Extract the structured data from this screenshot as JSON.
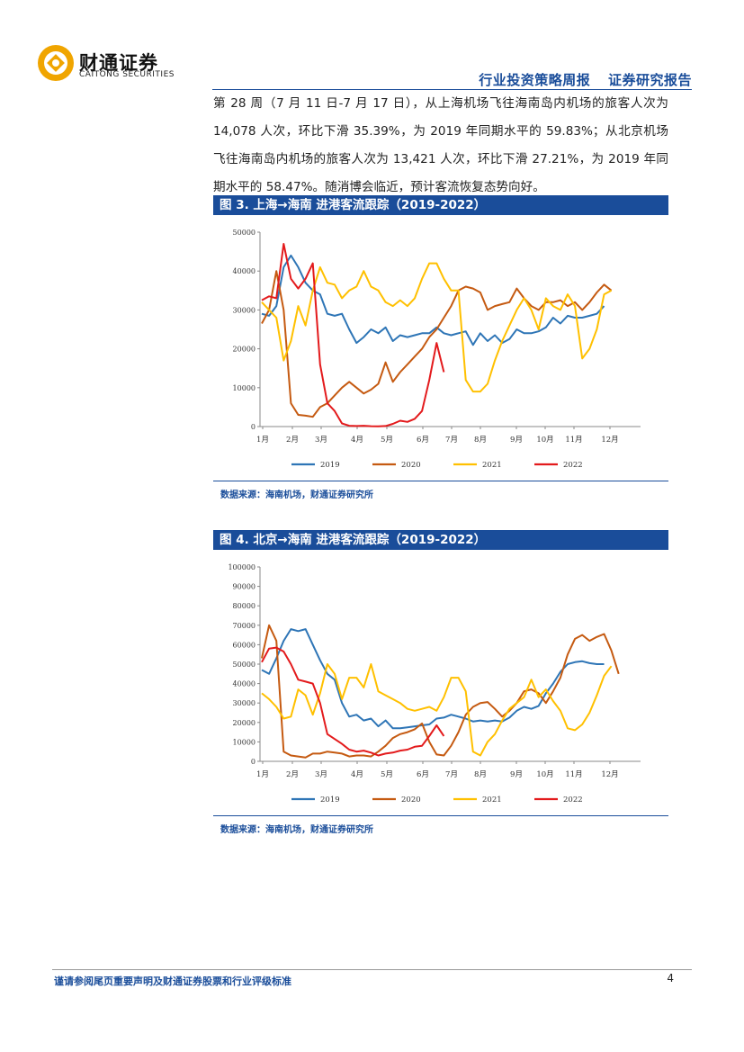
{
  "header": {
    "logo_cn": "财通证券",
    "logo_en": "CAITONG SECURITIES",
    "report_type": "行业投资策略周报",
    "report_class": "证券研究报告"
  },
  "paragraph": "第 28 周（7 月 11 日-7 月 17 日），从上海机场飞往海南岛内机场的旅客人次为 14,078 人次，环比下滑 35.39%，为 2019 年同期水平的 59.83%；从北京机场飞往海南岛内机场的旅客人次为 13,421 人次，环比下滑 27.21%，为 2019 年同期水平的 58.47%。随消博会临近，预计客流恢复态势向好。",
  "figures": [
    {
      "title": "图 3. 上海→海南  进港客流跟踪（2019-2022）",
      "source": "数据来源：海南机场，财通证券研究所"
    },
    {
      "title": "图 4. 北京→海南  进港客流跟踪（2019-2022）",
      "source": "数据来源：海南机场，财通证券研究所"
    }
  ],
  "colors": {
    "brand": "#1a4d9a",
    "logo": "#f0a500",
    "s2019": "#2e75b6",
    "s2020": "#c55a11",
    "s2021": "#ffc000",
    "s2022": "#e31a1c"
  },
  "chart_data": [
    {
      "type": "line",
      "title": "上海→海南  进港客流跟踪（2019-2022）",
      "x_tick_labels": [
        "1月",
        "2月",
        "3月",
        "4月",
        "5月",
        "6月",
        "7月",
        "8月",
        "9月",
        "10月",
        "11月",
        "12月"
      ],
      "x_unit": "week",
      "ylim": [
        0,
        50000
      ],
      "y_ticks": [
        0,
        10000,
        20000,
        30000,
        40000,
        50000
      ],
      "series": [
        {
          "name": "2019",
          "color": "#2e75b6",
          "values": [
            29000,
            28500,
            31000,
            41000,
            44000,
            41000,
            37000,
            35000,
            34000,
            29000,
            28500,
            29000,
            25000,
            21500,
            23000,
            25000,
            24000,
            25500,
            22000,
            23500,
            23000,
            23500,
            24000,
            24000,
            25500,
            24000,
            23500,
            24000,
            24500,
            21000,
            24000,
            22000,
            23500,
            21500,
            22500,
            25000,
            24000,
            24000,
            24500,
            25500,
            28000,
            26500,
            28500,
            28000,
            28000,
            28500,
            29000,
            31000
          ]
        },
        {
          "name": "2020",
          "color": "#c55a11",
          "values": [
            26500,
            30000,
            40000,
            30000,
            6000,
            3000,
            2800,
            2500,
            5000,
            6000,
            8000,
            10000,
            11500,
            10000,
            8500,
            9500,
            11000,
            16500,
            11500,
            14000,
            16000,
            18000,
            20000,
            23000,
            25000,
            28000,
            31000,
            35000,
            36000,
            35500,
            34500,
            30000,
            31000,
            31500,
            32000,
            35500,
            33000,
            31000,
            30000,
            32000,
            32000,
            32500,
            31000,
            32000,
            30000,
            32000,
            34500,
            36500,
            35000
          ]
        },
        {
          "name": "2021",
          "color": "#ffc000",
          "values": [
            32000,
            30000,
            28000,
            17000,
            22000,
            31000,
            26000,
            35000,
            41000,
            37000,
            36500,
            33000,
            35000,
            36000,
            40000,
            36000,
            35000,
            32000,
            31000,
            32500,
            31000,
            33000,
            38000,
            42000,
            42000,
            38000,
            35000,
            35000,
            12000,
            9000,
            9000,
            11000,
            17000,
            22000,
            26000,
            30000,
            33000,
            30000,
            25000,
            33000,
            31000,
            30000,
            34000,
            31000,
            17500,
            20000,
            25000,
            34000,
            35000
          ]
        },
        {
          "name": "2022",
          "color": "#e31a1c",
          "values": [
            32500,
            33500,
            33000,
            47000,
            38000,
            35500,
            38000,
            42000,
            16000,
            6000,
            4000,
            800,
            200,
            150,
            200,
            100,
            50,
            150,
            700,
            1500,
            1200,
            2000,
            4000,
            12000,
            21500,
            14000
          ]
        }
      ]
    },
    {
      "type": "line",
      "title": "北京→海南  进港客流跟踪（2019-2022）",
      "x_tick_labels": [
        "1月",
        "2月",
        "3月",
        "4月",
        "5月",
        "6月",
        "7月",
        "8月",
        "9月",
        "10月",
        "11月",
        "12月"
      ],
      "x_unit": "week",
      "ylim": [
        0,
        100000
      ],
      "y_ticks": [
        0,
        10000,
        20000,
        30000,
        40000,
        50000,
        60000,
        70000,
        80000,
        90000,
        100000
      ],
      "series": [
        {
          "name": "2019",
          "color": "#2e75b6",
          "values": [
            47000,
            45000,
            53000,
            62000,
            68000,
            67000,
            68000,
            60000,
            52000,
            45000,
            42000,
            30000,
            23000,
            24000,
            21000,
            22000,
            18000,
            21000,
            17000,
            17000,
            17500,
            18000,
            18500,
            19000,
            22000,
            22500,
            24000,
            23000,
            22000,
            20500,
            21000,
            20500,
            21000,
            20500,
            22500,
            26000,
            28000,
            27000,
            28500,
            35000,
            40000,
            46000,
            50000,
            51000,
            51500,
            50500,
            50000,
            50000
          ]
        },
        {
          "name": "2020",
          "color": "#c55a11",
          "values": [
            53000,
            70000,
            62000,
            5000,
            3000,
            2500,
            2000,
            4000,
            4000,
            5000,
            4500,
            4000,
            2500,
            3000,
            3000,
            2500,
            5000,
            8000,
            12000,
            14000,
            15000,
            16500,
            19500,
            10000,
            3500,
            3000,
            8000,
            15000,
            24000,
            28000,
            30000,
            30500,
            27000,
            23000,
            26000,
            30000,
            36000,
            37000,
            35000,
            30000,
            36000,
            43000,
            55000,
            63000,
            65000,
            62000,
            64000,
            65500,
            57000,
            45000
          ]
        },
        {
          "name": "2021",
          "color": "#ffc000",
          "values": [
            35000,
            32000,
            28000,
            22000,
            23000,
            37000,
            34000,
            24000,
            35000,
            50000,
            45000,
            32000,
            43000,
            43000,
            38000,
            50000,
            36000,
            34000,
            32000,
            30000,
            27000,
            26000,
            27000,
            28000,
            26000,
            33000,
            43000,
            43000,
            36000,
            5000,
            3000,
            10000,
            14000,
            21000,
            27000,
            30000,
            33000,
            42000,
            33000,
            37000,
            31000,
            26000,
            17000,
            16000,
            19000,
            25000,
            34000,
            44000,
            49000
          ]
        },
        {
          "name": "2022",
          "color": "#e31a1c",
          "values": [
            51000,
            58000,
            58500,
            56500,
            50000,
            42000,
            41000,
            40000,
            30000,
            14000,
            11500,
            9000,
            6000,
            5000,
            5500,
            4500,
            3000,
            4000,
            4500,
            5500,
            6000,
            7500,
            8000,
            13000,
            18500,
            13000
          ]
        }
      ]
    }
  ],
  "footer": {
    "disclaimer": "谨请参阅尾页重要声明及财通证券股票和行业评级标准",
    "page_number": "4"
  }
}
